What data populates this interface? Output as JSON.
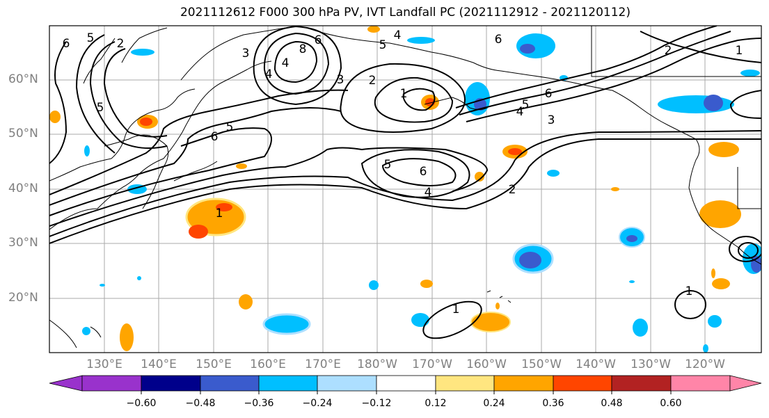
{
  "title": "2021112612 F000 300 hPa PV, IVT Landfall PC (2021112912 - 2021120112)",
  "lat_labels": [
    "60°N",
    "50°N",
    "40°N",
    "30°N",
    "20°N"
  ],
  "lon_labels": [
    "130°E",
    "140°E",
    "150°E",
    "160°E",
    "170°E",
    "180°W",
    "170°W",
    "160°W",
    "150°W",
    "140°W",
    "130°W",
    "120°W"
  ],
  "colorbar": {
    "tick_labels": [
      "−0.60",
      "−0.48",
      "−0.36",
      "−0.24",
      "−0.12",
      "0.12",
      "0.24",
      "0.36",
      "0.48",
      "0.60"
    ],
    "colors": [
      "#9932CC",
      "#00008B",
      "#3A5BCD",
      "#00BFFF",
      "#ADDFFF",
      "#FFFFFF",
      "#FFE680",
      "#FFA500",
      "#FF4500",
      "#B22222",
      "#FF85A8"
    ]
  },
  "contour_labels": [
    "5",
    "2",
    "6",
    "3",
    "4",
    "4",
    "5",
    "6",
    "8",
    "4",
    "3",
    "2",
    "1",
    "6",
    "5",
    "4",
    "6",
    "3",
    "2",
    "1",
    "5",
    "6",
    "5",
    "6",
    "4",
    "2",
    "1",
    "1",
    "1",
    "5"
  ]
}
